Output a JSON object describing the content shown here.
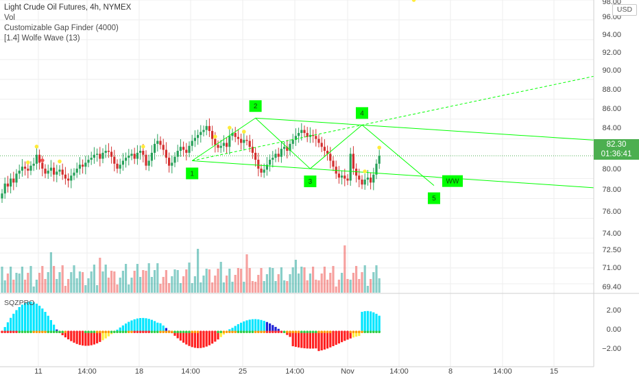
{
  "legend": {
    "title": "Light Crude Oil Futures, 4h, NYMEX",
    "lines": [
      "Vol",
      "Customizable Gap Finder (4000)",
      "[1.4] Wolfe Wave (13)"
    ]
  },
  "indicator_label": "SQZPRO",
  "currency_button": "USD",
  "last_price": {
    "value": "82.30",
    "countdown": "01:36:41",
    "color": "#4caf50"
  },
  "price_axis": {
    "labels": [
      "98.00",
      "96.00",
      "94.00",
      "92.00",
      "90.00",
      "88.00",
      "86.00",
      "84.00",
      "80.00",
      "78.00",
      "76.00",
      "74.00",
      "72.50",
      "71.00",
      "69.40"
    ]
  },
  "indicator_axis": {
    "labels": [
      "2.00",
      "0.00",
      "−2.00"
    ]
  },
  "time_axis": {
    "labels": [
      "11",
      "14:00",
      "18",
      "14:00",
      "25",
      "14:00",
      "Nov",
      "14:00",
      "8",
      "14:00",
      "15"
    ]
  },
  "wolfe_wave": {
    "point_labels": [
      "1",
      "2",
      "3",
      "4",
      "5"
    ],
    "target_label": "WW",
    "color": "#00ff00"
  },
  "colors": {
    "up": "#26a69a",
    "down": "#ef5350",
    "up_candle": "#27a15a",
    "down_candle": "#d32f2f",
    "wolfe": "#00ff00",
    "grid": "#eeeeee"
  },
  "chart_data": {
    "type": "candlestick",
    "symbol": "Light Crude Oil Futures",
    "interval": "4h",
    "exchange": "NYMEX",
    "ylim": [
      68.5,
      98
    ],
    "closes": [
      78.5,
      79.5,
      79.2,
      80.0,
      79.6,
      80.5,
      80.8,
      81.2,
      81.0,
      80.8,
      81.3,
      81.5,
      82.4,
      81.6,
      81.0,
      80.5,
      80.8,
      81.1,
      80.4,
      80.7,
      80.9,
      80.4,
      80.0,
      79.8,
      80.3,
      80.6,
      81.0,
      81.4,
      81.2,
      81.6,
      81.9,
      82.1,
      82.4,
      82.5,
      82.0,
      82.6,
      82.8,
      82.7,
      82.2,
      81.5,
      81.0,
      81.4,
      81.8,
      82.1,
      82.3,
      82.5,
      82.0,
      82.6,
      82.8,
      82.4,
      81.3,
      81.8,
      82.6,
      83.5,
      83.8,
      83.4,
      82.9,
      82.1,
      81.3,
      81.6,
      82.2,
      82.8,
      83.2,
      82.9,
      82.6,
      83.3,
      83.8,
      84.1,
      84.4,
      84.7,
      84.9,
      85.3,
      84.8,
      84.0,
      83.4,
      83.1,
      83.3,
      83.6,
      83.2,
      84.3,
      84.6,
      84.2,
      84.0,
      83.6,
      83.9,
      83.8,
      83.2,
      82.6,
      81.9,
      81.0,
      80.6,
      80.9,
      81.4,
      81.9,
      82.1,
      82.5,
      82.2,
      83.0,
      83.2,
      82.8,
      83.5,
      83.9,
      84.3,
      84.6,
      84.9,
      84.6,
      84.2,
      84.4,
      84.3,
      84.0,
      83.6,
      83.2,
      82.8,
      82.5,
      81.8,
      81.2,
      80.5,
      80.1,
      80.3,
      80.0,
      79.8,
      82.5,
      81.0,
      80.3,
      79.9,
      79.4,
      79.9,
      80.1,
      79.6,
      80.4,
      81.5,
      82.3
    ],
    "wolfe_points": [
      {
        "label": "1",
        "index": 66,
        "price": 81.8
      },
      {
        "label": "2",
        "index": 88,
        "price": 86.1
      },
      {
        "label": "3",
        "index": 107,
        "price": 81.0
      },
      {
        "label": "4",
        "index": 125,
        "price": 85.4
      },
      {
        "label": "5",
        "index": 150,
        "price": 79.3
      }
    ],
    "last_price": 82.3,
    "indicator": "SQZPRO",
    "indicator_ylim": [
      -3.0,
      3.2
    ]
  }
}
